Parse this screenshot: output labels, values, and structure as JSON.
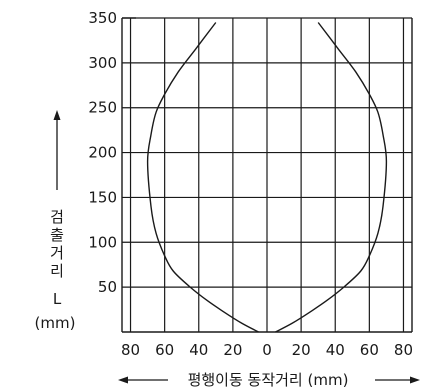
{
  "chart_data": {
    "type": "line",
    "title": "",
    "xlabel": "평행이동 동작거리 (mm)",
    "ylabel": "검출거리",
    "ylabel_symbol": "L",
    "ylabel_unit": "(mm)",
    "x_ticks": [
      "80",
      "60",
      "40",
      "20",
      "0",
      "20",
      "40",
      "60",
      "80"
    ],
    "y_ticks": [
      "50",
      "100",
      "150",
      "200",
      "250",
      "300",
      "350"
    ],
    "xlim": [
      -85,
      85
    ],
    "ylim": [
      0,
      350
    ],
    "grid": true,
    "legend": "none",
    "series": [
      {
        "x": [
          -5,
          -15,
          -25,
          -35,
          -45,
          -55,
          -60,
          -65,
          -68,
          -70,
          -68,
          -65,
          -60,
          -52,
          -42,
          -30
        ],
        "y": [
          0,
          10,
          22,
          35,
          50,
          68,
          85,
          110,
          140,
          190,
          220,
          245,
          265,
          290,
          315,
          345
        ]
      },
      {
        "x": [
          5,
          15,
          25,
          35,
          45,
          55,
          60,
          65,
          68,
          70,
          68,
          65,
          60,
          52,
          42,
          30
        ],
        "y": [
          0,
          10,
          22,
          35,
          50,
          68,
          85,
          110,
          140,
          190,
          220,
          245,
          265,
          290,
          315,
          345
        ]
      }
    ]
  },
  "colors": {
    "grid": "#1a1a1a",
    "curve": "#1a1a1a",
    "text": "#1a1a1a"
  }
}
